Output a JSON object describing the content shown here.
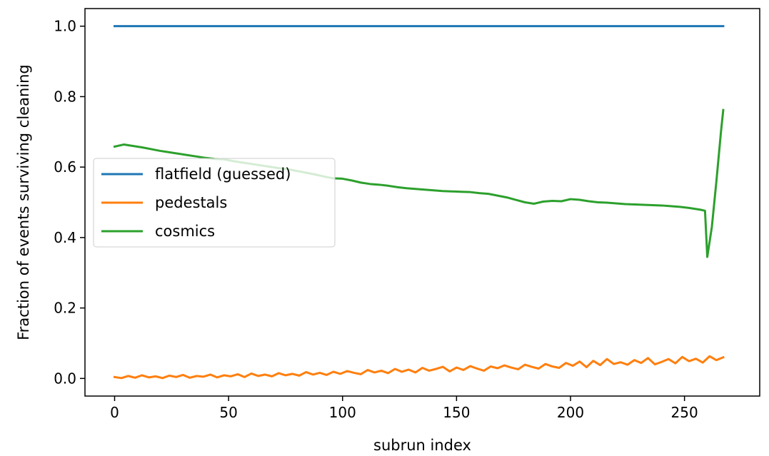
{
  "chart_data": {
    "type": "line",
    "title": "",
    "xlabel": "subrun index",
    "ylabel": "Fraction of events surviving cleaning",
    "xlim": [
      -13,
      283
    ],
    "ylim": [
      -0.05,
      1.05
    ],
    "xticks": [
      0,
      50,
      100,
      150,
      200,
      250
    ],
    "xtick_labels": [
      "0",
      "50",
      "100",
      "150",
      "200",
      "250"
    ],
    "yticks": [
      0.0,
      0.2,
      0.4,
      0.6,
      0.8,
      1.0
    ],
    "ytick_labels": [
      "0.0",
      "0.2",
      "0.4",
      "0.6",
      "0.8",
      "1.0"
    ],
    "grid": false,
    "legend_position": "center-left",
    "series": [
      {
        "name": "flatfield (guessed)",
        "color": "#1f77b4",
        "x": [
          0,
          267
        ],
        "y": [
          1.0,
          1.0
        ]
      },
      {
        "name": "pedestals",
        "color": "#ff7f0e",
        "x": [
          0,
          3,
          6,
          9,
          12,
          15,
          18,
          21,
          24,
          27,
          30,
          33,
          36,
          39,
          42,
          45,
          48,
          51,
          54,
          57,
          60,
          63,
          66,
          69,
          72,
          75,
          78,
          81,
          84,
          87,
          90,
          93,
          96,
          99,
          102,
          105,
          108,
          111,
          114,
          117,
          120,
          123,
          126,
          129,
          132,
          135,
          138,
          141,
          144,
          147,
          150,
          153,
          156,
          159,
          162,
          165,
          168,
          171,
          174,
          177,
          180,
          183,
          186,
          189,
          192,
          195,
          198,
          201,
          204,
          207,
          210,
          213,
          216,
          219,
          222,
          225,
          228,
          231,
          234,
          237,
          240,
          243,
          246,
          249,
          252,
          255,
          258,
          261,
          264,
          267
        ],
        "y": [
          0.004,
          0.001,
          0.007,
          0.002,
          0.009,
          0.003,
          0.006,
          0.001,
          0.008,
          0.004,
          0.01,
          0.002,
          0.007,
          0.005,
          0.011,
          0.003,
          0.009,
          0.006,
          0.012,
          0.004,
          0.014,
          0.007,
          0.011,
          0.006,
          0.015,
          0.009,
          0.013,
          0.008,
          0.018,
          0.011,
          0.016,
          0.01,
          0.019,
          0.013,
          0.021,
          0.016,
          0.012,
          0.024,
          0.017,
          0.022,
          0.015,
          0.027,
          0.019,
          0.025,
          0.017,
          0.03,
          0.022,
          0.027,
          0.033,
          0.02,
          0.031,
          0.024,
          0.035,
          0.028,
          0.022,
          0.034,
          0.029,
          0.037,
          0.031,
          0.026,
          0.039,
          0.033,
          0.028,
          0.041,
          0.034,
          0.03,
          0.044,
          0.036,
          0.048,
          0.032,
          0.05,
          0.038,
          0.055,
          0.041,
          0.046,
          0.039,
          0.052,
          0.044,
          0.058,
          0.04,
          0.047,
          0.055,
          0.043,
          0.061,
          0.049,
          0.056,
          0.045,
          0.063,
          0.052,
          0.06
        ]
      },
      {
        "name": "cosmics",
        "color": "#2ca02c",
        "x": [
          0,
          4,
          8,
          12,
          16,
          20,
          24,
          28,
          32,
          36,
          40,
          44,
          48,
          52,
          56,
          60,
          64,
          68,
          72,
          76,
          80,
          84,
          88,
          92,
          96,
          100,
          104,
          108,
          112,
          116,
          120,
          124,
          128,
          132,
          136,
          140,
          144,
          148,
          152,
          156,
          160,
          164,
          168,
          172,
          176,
          180,
          184,
          188,
          192,
          196,
          200,
          204,
          208,
          212,
          216,
          220,
          224,
          228,
          232,
          236,
          240,
          244,
          248,
          252,
          255,
          257,
          259,
          260,
          262,
          264,
          266,
          267
        ],
        "y": [
          0.658,
          0.664,
          0.66,
          0.656,
          0.651,
          0.646,
          0.642,
          0.638,
          0.634,
          0.63,
          0.626,
          0.623,
          0.622,
          0.617,
          0.613,
          0.609,
          0.605,
          0.601,
          0.597,
          0.594,
          0.589,
          0.584,
          0.579,
          0.573,
          0.568,
          0.567,
          0.562,
          0.556,
          0.552,
          0.55,
          0.547,
          0.543,
          0.54,
          0.538,
          0.536,
          0.534,
          0.532,
          0.531,
          0.53,
          0.529,
          0.526,
          0.524,
          0.519,
          0.514,
          0.507,
          0.5,
          0.496,
          0.502,
          0.504,
          0.503,
          0.509,
          0.507,
          0.503,
          0.5,
          0.499,
          0.497,
          0.495,
          0.494,
          0.493,
          0.492,
          0.491,
          0.489,
          0.487,
          0.484,
          0.481,
          0.479,
          0.476,
          0.345,
          0.43,
          0.56,
          0.7,
          0.762
        ]
      }
    ]
  }
}
